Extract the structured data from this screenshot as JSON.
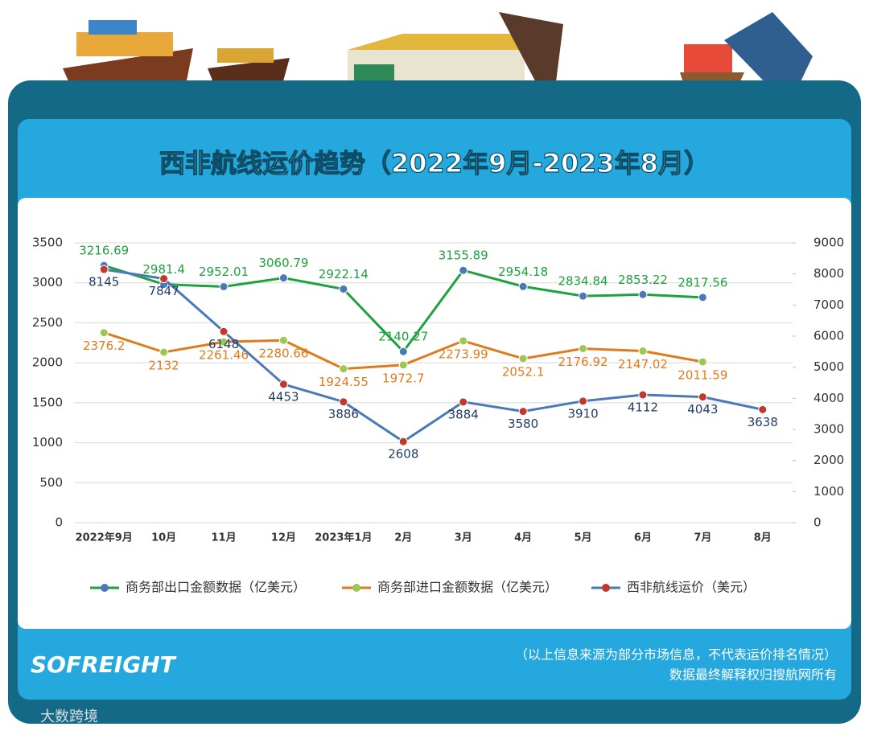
{
  "title": "西非航线运价趋势（2022年9月-2023年8月）",
  "chart_data": {
    "type": "line",
    "categories": [
      "2022年9月",
      "10月",
      "11月",
      "12月",
      "2023年1月",
      "2月",
      "3月",
      "4月",
      "5月",
      "6月",
      "7月",
      "8月"
    ],
    "series": [
      {
        "name": "商务部出口金额数据（亿美元）",
        "color": "#1ea23d",
        "marker_color": "#4a78b8",
        "values": [
          3216.69,
          2981.4,
          2952.01,
          3060.79,
          2922.14,
          2140.27,
          3155.89,
          2954.18,
          2834.84,
          2853.22,
          2817.56,
          null
        ]
      },
      {
        "name": "商务部进口金额数据（亿美元）",
        "color": "#e07a1c",
        "marker_color": "#9bc852",
        "values": [
          2376.2,
          2132,
          2261.46,
          2280.66,
          1924.55,
          1972.7,
          2273.99,
          2052.1,
          2176.92,
          2147.02,
          2011.59,
          null
        ]
      },
      {
        "name": "西非航线运价（美元）",
        "color": "#4a78b8",
        "marker_color": "#c0392b",
        "axis": "y2",
        "values": [
          8145,
          7847,
          6148,
          4453,
          3886,
          2608,
          3884,
          3580,
          3910,
          4112,
          4043,
          3638
        ]
      }
    ],
    "ylim": [
      0,
      3500
    ],
    "yticks": [
      0,
      500,
      1000,
      1500,
      2000,
      2500,
      3000,
      3500
    ],
    "y2lim": [
      0,
      9000
    ],
    "y2ticks": [
      0,
      1000,
      2000,
      3000,
      4000,
      5000,
      6000,
      7000,
      8000,
      9000
    ],
    "grid": true,
    "legend": "bottom"
  },
  "footer": {
    "logo": "SOFREIGHT",
    "note": "（以上信息来源为部分市场信息，不代表运价排名情况）",
    "rights": "数据最终解释权归搜航网所有",
    "watermark": "大数跨境"
  }
}
